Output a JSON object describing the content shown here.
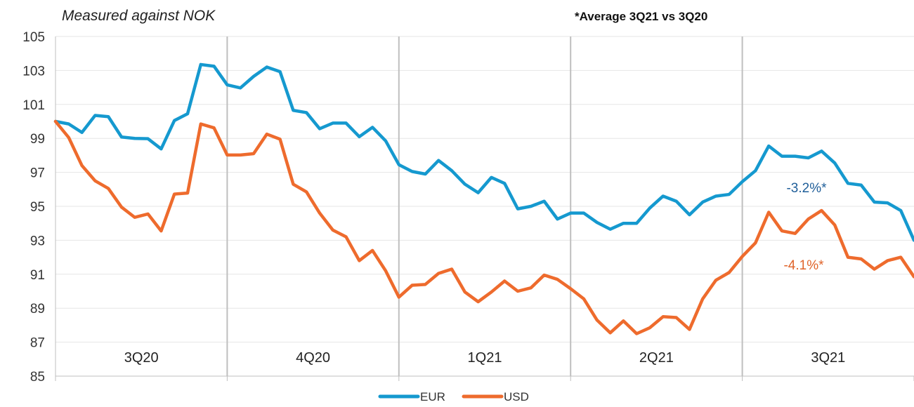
{
  "chart_data": {
    "type": "line",
    "subtitle": "Measured against NOK",
    "note": "*Average 3Q21 vs 3Q20",
    "ylim": [
      85,
      105
    ],
    "y_ticks": [
      85,
      87,
      89,
      91,
      93,
      95,
      97,
      99,
      101,
      103,
      105
    ],
    "grid": true,
    "legend_position": "bottom-center",
    "period_labels": [
      "3Q20",
      "4Q20",
      "1Q21",
      "2Q21",
      "3Q21"
    ],
    "series": [
      {
        "name": "EUR",
        "color": "#1599CF",
        "annotation": "-3.2%*",
        "annotation_color": "#1F5E99",
        "values": [
          100.0,
          99.85,
          99.35,
          100.35,
          100.28,
          99.08,
          99.0,
          98.98,
          98.38,
          100.05,
          100.45,
          103.35,
          103.25,
          102.15,
          101.97,
          102.65,
          103.2,
          102.93,
          100.65,
          100.52,
          99.57,
          99.9,
          99.9,
          99.1,
          99.65,
          98.85,
          97.45,
          97.05,
          96.9,
          97.7,
          97.1,
          96.3,
          95.8,
          96.7,
          96.35,
          94.85,
          95.0,
          95.3,
          94.25,
          94.6,
          94.6,
          94.05,
          93.65,
          94.0,
          94.0,
          94.9,
          95.6,
          95.3,
          94.5,
          95.25,
          95.6,
          95.7,
          96.45,
          97.1,
          98.55,
          97.95,
          97.95,
          97.85,
          98.25,
          97.55,
          96.35,
          96.25,
          95.25,
          95.2,
          94.75,
          93.0
        ]
      },
      {
        "name": "USD",
        "color": "#EE6B2D",
        "annotation": "-4.1%*",
        "annotation_color": "#E0642A",
        "values": [
          100.0,
          99.05,
          97.4,
          96.5,
          96.05,
          94.95,
          94.35,
          94.55,
          93.55,
          95.72,
          95.78,
          99.85,
          99.62,
          98.02,
          98.02,
          98.1,
          99.25,
          98.95,
          96.3,
          95.85,
          94.6,
          93.6,
          93.2,
          91.8,
          92.4,
          91.2,
          89.65,
          90.35,
          90.4,
          91.05,
          91.3,
          89.95,
          89.38,
          89.95,
          90.6,
          90.0,
          90.2,
          90.95,
          90.7,
          90.15,
          89.55,
          88.3,
          87.55,
          88.25,
          87.5,
          87.85,
          88.5,
          88.45,
          87.75,
          89.55,
          90.65,
          91.1,
          92.05,
          92.85,
          94.65,
          93.55,
          93.4,
          94.25,
          94.75,
          93.9,
          92.0,
          91.9,
          91.3,
          91.8,
          92.0,
          90.85
        ]
      }
    ]
  }
}
